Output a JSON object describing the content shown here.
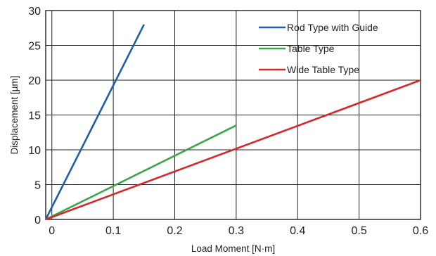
{
  "chart_data": {
    "type": "line",
    "xlabel": "Load Moment [N·m]",
    "ylabel": "Displacement [µm]",
    "xlim": [
      -0.01,
      0.6
    ],
    "ylim": [
      0,
      30
    ],
    "x_ticks": [
      "0",
      "0.1",
      "0.2",
      "0.3",
      "0.4",
      "0.5",
      "0.6"
    ],
    "x_tick_values": [
      0,
      0.1,
      0.2,
      0.3,
      0.4,
      0.5,
      0.6
    ],
    "y_ticks": [
      "0",
      "5",
      "10",
      "15",
      "20",
      "25",
      "30"
    ],
    "y_tick_values": [
      0,
      5,
      10,
      15,
      20,
      25,
      30
    ],
    "grid": true,
    "legend_position": "top-right",
    "series": [
      {
        "name": "Rod Type with Guide",
        "color": "#1f5fa8",
        "x": [
          -0.01,
          0.15
        ],
        "y": [
          0,
          28
        ]
      },
      {
        "name": "Table Type",
        "color": "#3aa64a",
        "x": [
          -0.01,
          0.3
        ],
        "y": [
          0,
          13.5
        ]
      },
      {
        "name": "Wide Table Type",
        "color": "#d9262b",
        "x": [
          -0.01,
          0.6
        ],
        "y": [
          0,
          20
        ]
      }
    ]
  }
}
